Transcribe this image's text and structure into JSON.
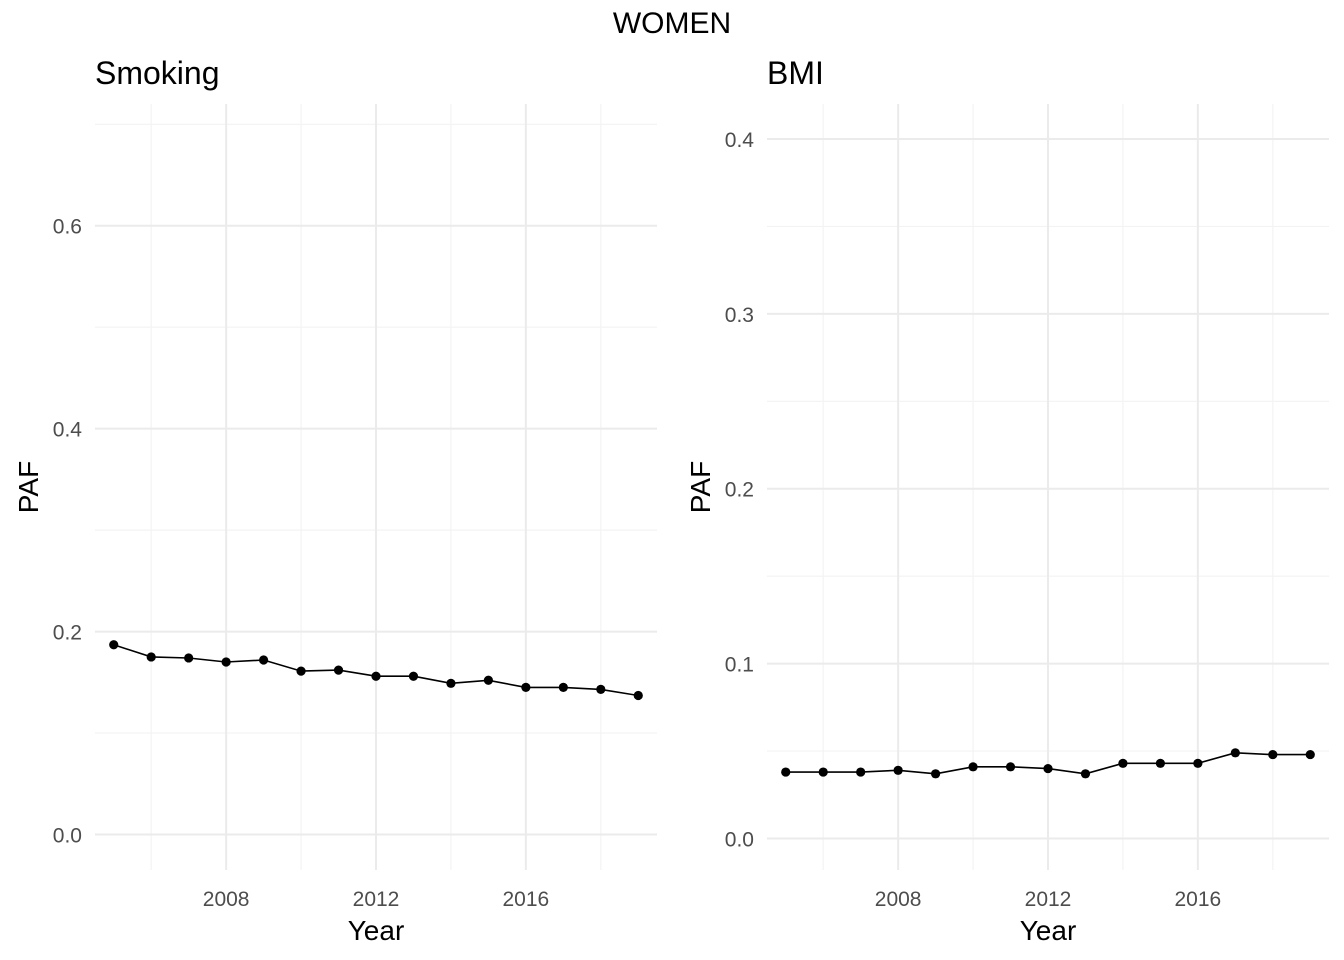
{
  "figure": {
    "title": "WOMEN"
  },
  "chart_data": [
    {
      "type": "line",
      "title": "Smoking",
      "xlabel": "Year",
      "ylabel": "PAF",
      "x": [
        2005,
        2006,
        2007,
        2008,
        2009,
        2010,
        2011,
        2012,
        2013,
        2014,
        2015,
        2016,
        2017,
        2018,
        2019
      ],
      "values": [
        0.187,
        0.175,
        0.174,
        0.17,
        0.172,
        0.161,
        0.162,
        0.156,
        0.156,
        0.149,
        0.152,
        0.145,
        0.145,
        0.143,
        0.137
      ],
      "xlim": [
        2004.5,
        2019.5
      ],
      "ylim": [
        -0.035,
        0.72
      ],
      "xticks": [
        2008,
        2012,
        2016
      ],
      "xticklabels": [
        "2008",
        "2012",
        "2016"
      ],
      "yticks": [
        0.0,
        0.2,
        0.4,
        0.6
      ],
      "yticklabels": [
        "0.0",
        "0.2",
        "0.4",
        "0.6"
      ],
      "grid": true
    },
    {
      "type": "line",
      "title": "BMI",
      "xlabel": "Year",
      "ylabel": "PAF",
      "x": [
        2005,
        2006,
        2007,
        2008,
        2009,
        2010,
        2011,
        2012,
        2013,
        2014,
        2015,
        2016,
        2017,
        2018,
        2019
      ],
      "values": [
        0.038,
        0.038,
        0.038,
        0.039,
        0.037,
        0.041,
        0.041,
        0.04,
        0.037,
        0.043,
        0.043,
        0.043,
        0.049,
        0.048,
        0.048
      ],
      "xlim": [
        2004.5,
        2019.5
      ],
      "ylim": [
        -0.018,
        0.42
      ],
      "xticks": [
        2008,
        2012,
        2016
      ],
      "xticklabels": [
        "2008",
        "2012",
        "2016"
      ],
      "yticks": [
        0.0,
        0.1,
        0.2,
        0.3,
        0.4
      ],
      "yticklabels": [
        "0.0",
        "0.1",
        "0.2",
        "0.3",
        "0.4"
      ],
      "grid": true
    }
  ]
}
